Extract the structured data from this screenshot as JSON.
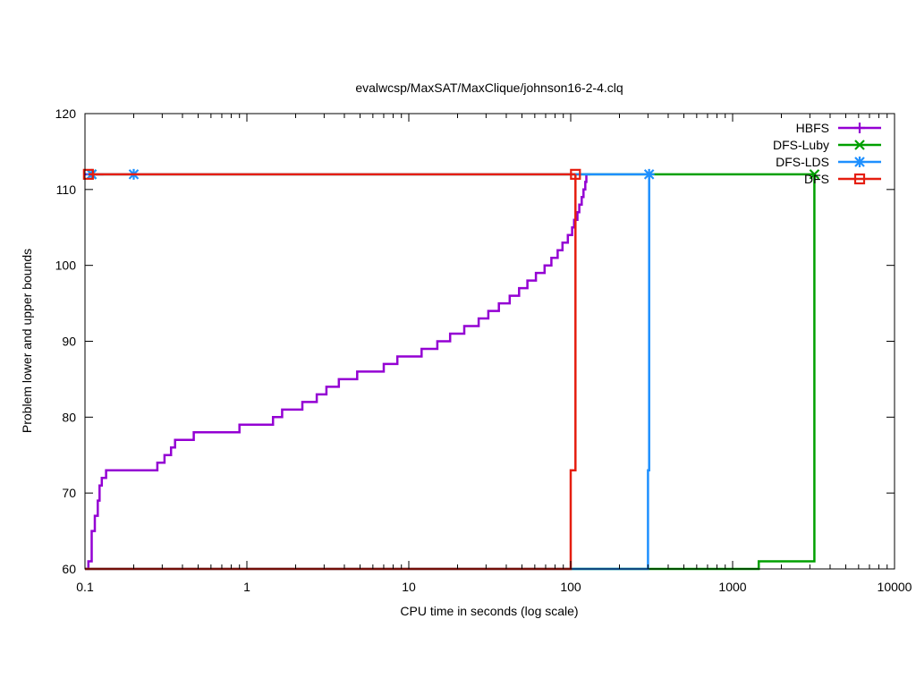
{
  "chart_data": {
    "type": "line",
    "title": "evalwcsp/MaxSAT/MaxClique/johnson16-2-4.clq",
    "xlabel": "CPU time in seconds (log scale)",
    "ylabel": "Problem lower and upper bounds",
    "xscale": "log",
    "xlim": [
      0.1,
      10000
    ],
    "ylim": [
      60,
      120
    ],
    "xticks": [
      0.1,
      1,
      10,
      100,
      1000,
      10000
    ],
    "xtick_labels": [
      "0.1",
      "1",
      "10",
      "100",
      "1000",
      "10000"
    ],
    "yticks": [
      60,
      70,
      80,
      90,
      100,
      110,
      120
    ],
    "ytick_labels": [
      "60",
      "70",
      "80",
      "90",
      "100",
      "110",
      "120"
    ],
    "grid": false,
    "legend_position": "top-right",
    "series": [
      {
        "name": "HBFS",
        "color": "#9400D3",
        "marker": "plus",
        "upper_bound": {
          "x": [
            0.1,
            0.13
          ],
          "y": [
            112,
            112
          ]
        },
        "lower_bound": {
          "x": [
            0.1,
            0.105,
            0.11,
            0.115,
            0.12,
            0.123,
            0.127,
            0.135,
            0.14,
            0.15,
            0.28,
            0.31,
            0.34,
            0.36,
            0.38,
            0.47,
            0.9,
            1.45,
            1.65,
            2.2,
            2.7,
            3.1,
            3.7,
            4.8,
            7.0,
            8.5,
            12,
            15,
            18,
            22,
            27,
            31,
            36,
            42,
            48,
            54,
            61,
            69,
            76,
            83,
            89,
            96,
            102,
            105,
            110,
            113,
            117,
            120,
            123,
            125,
            127,
            129,
            131,
            132
          ],
          "y": [
            60,
            61,
            65,
            67,
            69,
            71,
            72,
            73,
            73,
            73,
            74,
            75,
            76,
            77,
            77,
            78,
            79,
            80,
            81,
            82,
            83,
            84,
            85,
            86,
            87,
            88,
            89,
            90,
            91,
            92,
            93,
            94,
            95,
            96,
            97,
            98,
            99,
            100,
            101,
            102,
            103,
            104,
            105,
            106,
            107,
            108,
            109,
            110,
            111,
            112,
            112,
            112,
            112,
            112
          ]
        }
      },
      {
        "name": "DFS-Luby",
        "color": "#00A000",
        "marker": "cross",
        "upper_bound": {
          "x": [
            0.11,
            3200
          ],
          "y": [
            112,
            112
          ]
        },
        "lower_bound": {
          "x": [
            0.1,
            1450,
            3200,
            3200
          ],
          "y": [
            60,
            61,
            61,
            112
          ]
        }
      },
      {
        "name": "DFS-LDS",
        "color": "#1E90FF",
        "marker": "star",
        "upper_bound": {
          "x": [
            0.11,
            0.2,
            305
          ],
          "y": [
            112,
            112,
            112
          ]
        },
        "lower_bound": {
          "x": [
            0.1,
            300,
            300,
            305
          ],
          "y": [
            60,
            60,
            73,
            112
          ]
        }
      },
      {
        "name": "DFS",
        "color": "#E51E10",
        "marker": "box",
        "upper_bound": {
          "x": [
            0.105,
            107
          ],
          "y": [
            112,
            112
          ]
        },
        "lower_bound": {
          "x": [
            0.1,
            100,
            100,
            107
          ],
          "y": [
            60,
            60,
            73,
            112
          ]
        }
      }
    ]
  }
}
